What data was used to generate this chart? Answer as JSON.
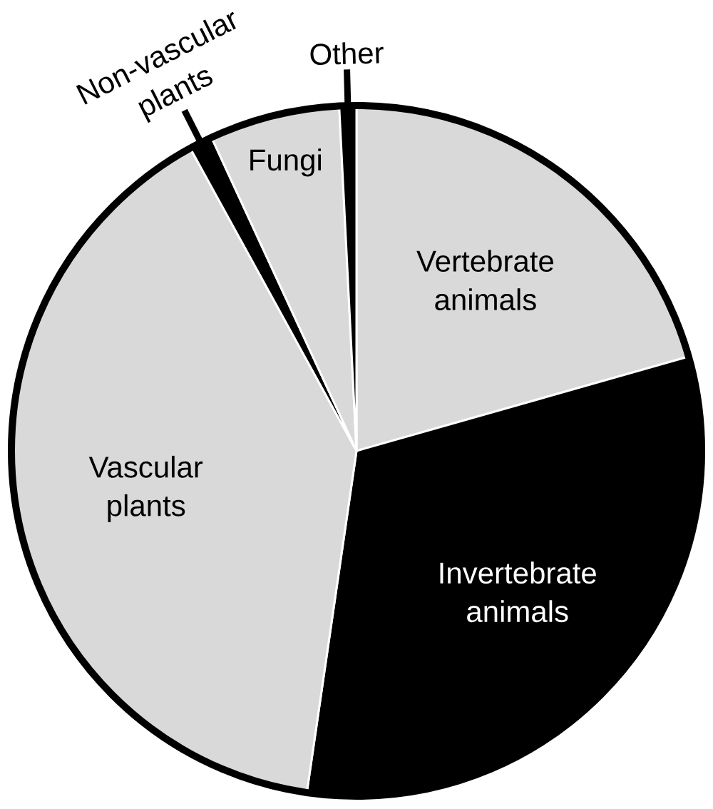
{
  "chart_data": {
    "type": "pie",
    "categories": [
      "Vertebrate animals",
      "Invertebrate animals",
      "Vascular plants",
      "Non-vascular plants",
      "Fungi",
      "Other"
    ],
    "values": [
      20.6,
      31.7,
      39.7,
      1.1,
      6.1,
      0.8
    ],
    "colors": [
      "#d9d9d9",
      "#000000",
      "#d9d9d9",
      "#000000",
      "#d9d9d9",
      "#000000"
    ]
  }
}
